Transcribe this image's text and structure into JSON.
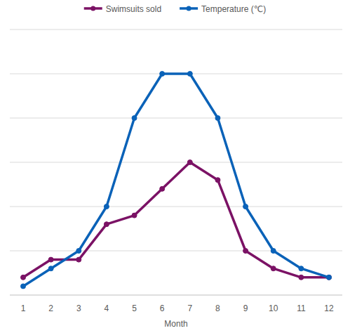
{
  "chart_data": {
    "type": "line",
    "x_label": "Month",
    "categories": [
      "1",
      "2",
      "3",
      "4",
      "5",
      "6",
      "7",
      "8",
      "9",
      "10",
      "11",
      "12"
    ],
    "series": [
      {
        "name": "Swimsuits sold",
        "color": "#7b1265",
        "marker": "circle",
        "line_style": "solid",
        "values": [
          0.4,
          0.8,
          0.8,
          1.6,
          1.8,
          2.4,
          3.0,
          2.6,
          1.0,
          0.6,
          0.4,
          0.4
        ]
      },
      {
        "name": "Temperature (℃)",
        "color": "#0a62b8",
        "marker": "circle",
        "line_style": "solid",
        "values": [
          0.2,
          0.6,
          1.0,
          2.0,
          4.0,
          5.0,
          5.0,
          4.0,
          2.0,
          1.0,
          0.6,
          0.4
        ]
      }
    ],
    "ylim": [
      0,
      6
    ],
    "yticks": [
      0,
      1,
      2,
      3,
      4,
      5,
      6
    ],
    "grid": true,
    "legend": "top",
    "tick_labels": "x"
  }
}
